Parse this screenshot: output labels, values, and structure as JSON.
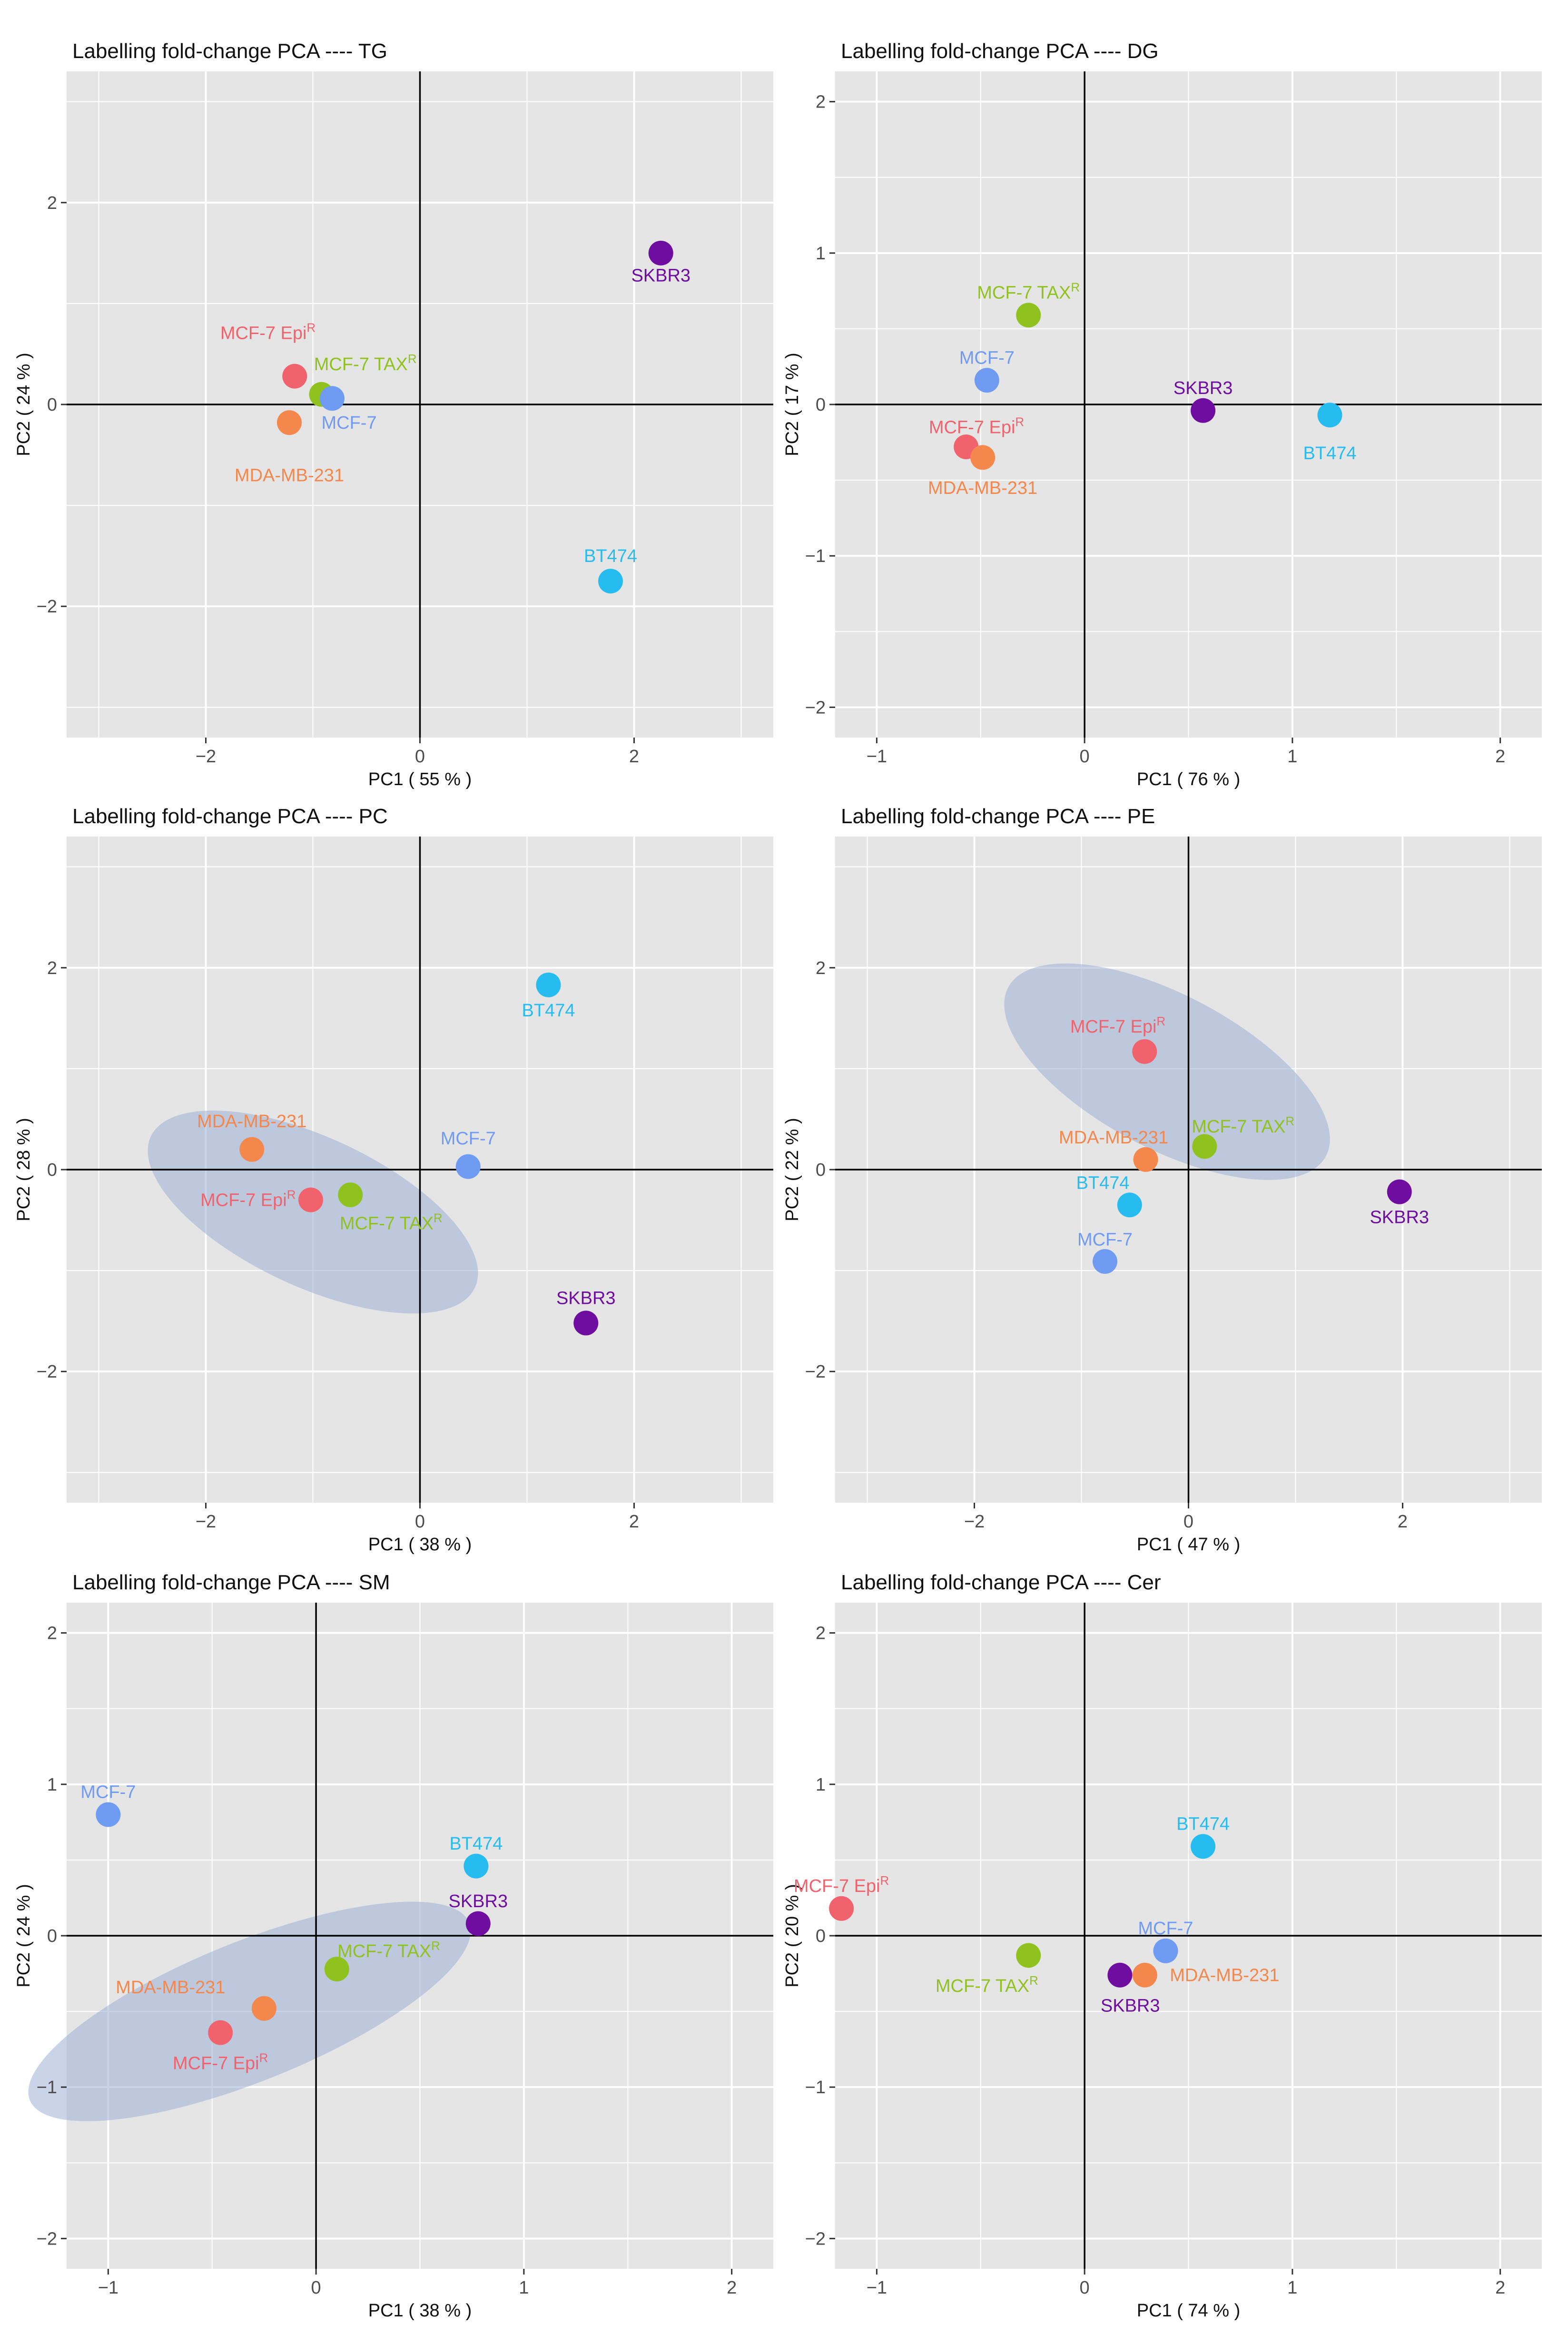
{
  "figure": {
    "colors": {
      "panel_background": "#E5E5E5",
      "gridline": "#FFFFFF",
      "zero_axis": "#000000",
      "ellipse": "#9DB0D6",
      "MCF-7": "#6F9BF2",
      "MCF-7 TAXR": "#90C21F",
      "MCF-7 EpiR": "#F1636C",
      "MDA-MB-231": "#F4874C",
      "BT474": "#27BCEF",
      "SKBR3": "#6E0DA0"
    }
  },
  "chart_data": [
    {
      "type": "scatter",
      "title": "Labelling fold-change PCA ---- TG",
      "xlabel": "PC1 ( 55 % )",
      "ylabel": "PC2 ( 24 % )",
      "xlim": [
        -3.3,
        3.3
      ],
      "ylim": [
        -3.3,
        3.3
      ],
      "xticks": [
        -2,
        0,
        2
      ],
      "xtick_labels": [
        "−2",
        "0",
        "2"
      ],
      "yticks": [
        -2,
        0,
        2
      ],
      "ytick_labels": [
        "−2",
        "0",
        "2"
      ],
      "points": [
        {
          "name": "SKBR3",
          "label": "SKBR3",
          "sup": "",
          "x": 2.25,
          "y": 1.5,
          "color_key": "SKBR3",
          "anchor": "middle",
          "dx": 0,
          "dy": -0.22
        },
        {
          "name": "MCF-7 EpiR",
          "label": "MCF-7 Epi",
          "sup": "R",
          "x": -1.17,
          "y": 0.28,
          "color_key": "MCF-7 EpiR",
          "anchor": "middle",
          "dx": -0.25,
          "dy": 0.43
        },
        {
          "name": "MCF-7 TAXR",
          "label": "MCF-7 TAX",
          "sup": "R",
          "x": -0.92,
          "y": 0.1,
          "color_key": "MCF-7 TAXR",
          "anchor": "start",
          "dx": -0.07,
          "dy": 0.3
        },
        {
          "name": "MCF-7",
          "label": "MCF-7",
          "sup": "",
          "x": -0.82,
          "y": 0.06,
          "color_key": "MCF-7",
          "anchor": "start",
          "dx": -0.1,
          "dy": -0.24
        },
        {
          "name": "MDA-MB-231",
          "label": "MDA-MB-231",
          "sup": "",
          "x": -1.22,
          "y": -0.18,
          "color_key": "MDA-MB-231",
          "anchor": "middle",
          "dx": 0,
          "dy": -0.52
        },
        {
          "name": "BT474",
          "label": "BT474",
          "sup": "",
          "x": 1.78,
          "y": -1.75,
          "color_key": "BT474",
          "anchor": "middle",
          "dx": 0,
          "dy": 0.25
        }
      ]
    },
    {
      "type": "scatter",
      "title": "Labelling fold-change PCA ---- DG",
      "xlabel": "PC1 ( 76 % )",
      "ylabel": "PC2 ( 17 % )",
      "xlim": [
        -1.2,
        2.2
      ],
      "ylim": [
        -2.2,
        2.2
      ],
      "xticks": [
        -1,
        0,
        1,
        2
      ],
      "xtick_labels": [
        "−1",
        "0",
        "1",
        "2"
      ],
      "yticks": [
        -2,
        -1,
        0,
        1,
        2
      ],
      "ytick_labels": [
        "−2",
        "−1",
        "0",
        "1",
        "2"
      ],
      "points": [
        {
          "name": "MCF-7 TAXR",
          "label": "MCF-7 TAX",
          "sup": "R",
          "x": -0.27,
          "y": 0.59,
          "color_key": "MCF-7 TAXR",
          "anchor": "middle",
          "dx": 0,
          "dy": 0.15
        },
        {
          "name": "MCF-7",
          "label": "MCF-7",
          "sup": "",
          "x": -0.47,
          "y": 0.16,
          "color_key": "MCF-7",
          "anchor": "middle",
          "dx": 0,
          "dy": 0.15
        },
        {
          "name": "SKBR3",
          "label": "SKBR3",
          "sup": "",
          "x": 0.57,
          "y": -0.04,
          "color_key": "SKBR3",
          "anchor": "middle",
          "dx": 0,
          "dy": 0.15
        },
        {
          "name": "BT474",
          "label": "BT474",
          "sup": "",
          "x": 1.18,
          "y": -0.07,
          "color_key": "BT474",
          "anchor": "middle",
          "dx": 0,
          "dy": -0.25
        },
        {
          "name": "MCF-7 EpiR",
          "label": "MCF-7 Epi",
          "sup": "R",
          "x": -0.57,
          "y": -0.28,
          "color_key": "MCF-7 EpiR",
          "anchor": "middle",
          "dx": 0.05,
          "dy": 0.13
        },
        {
          "name": "MDA-MB-231",
          "label": "MDA-MB-231",
          "sup": "",
          "x": -0.49,
          "y": -0.35,
          "color_key": "MDA-MB-231",
          "anchor": "middle",
          "dx": 0,
          "dy": -0.2
        }
      ]
    },
    {
      "type": "scatter",
      "title": "Labelling fold-change PCA ---- PC",
      "xlabel": "PC1 ( 38 % )",
      "ylabel": "PC2 ( 28 % )",
      "xlim": [
        -3.3,
        3.3
      ],
      "ylim": [
        -3.3,
        3.3
      ],
      "xticks": [
        -2,
        0,
        2
      ],
      "xtick_labels": [
        "−2",
        "0",
        "2"
      ],
      "yticks": [
        -2,
        0,
        2
      ],
      "ytick_labels": [
        "−2",
        "0",
        "2"
      ],
      "ellipse": {
        "cx": -1.0,
        "cy": -0.42,
        "rx": 1.67,
        "ry": 0.74,
        "rotate": 25
      },
      "points": [
        {
          "name": "BT474",
          "label": "BT474",
          "sup": "",
          "x": 1.2,
          "y": 1.83,
          "color_key": "BT474",
          "anchor": "middle",
          "dx": 0,
          "dy": -0.25
        },
        {
          "name": "MDA-MB-231",
          "label": "MDA-MB-231",
          "sup": "",
          "x": -1.57,
          "y": 0.2,
          "color_key": "MDA-MB-231",
          "anchor": "middle",
          "dx": 0,
          "dy": 0.28
        },
        {
          "name": "MCF-7",
          "label": "MCF-7",
          "sup": "",
          "x": 0.45,
          "y": 0.03,
          "color_key": "MCF-7",
          "anchor": "middle",
          "dx": 0,
          "dy": 0.28
        },
        {
          "name": "MCF-7 EpiR",
          "label": "MCF-7 Epi",
          "sup": "R",
          "x": -1.02,
          "y": -0.3,
          "color_key": "MCF-7 EpiR",
          "anchor": "end",
          "dx": -0.14,
          "dy": 0.0
        },
        {
          "name": "MCF-7 TAXR",
          "label": "MCF-7 TAX",
          "sup": "R",
          "x": -0.65,
          "y": -0.25,
          "color_key": "MCF-7 TAXR",
          "anchor": "middle",
          "dx": 0.38,
          "dy": -0.28
        },
        {
          "name": "SKBR3",
          "label": "SKBR3",
          "sup": "",
          "x": 1.55,
          "y": -1.52,
          "color_key": "SKBR3",
          "anchor": "middle",
          "dx": 0,
          "dy": 0.25
        }
      ]
    },
    {
      "type": "scatter",
      "title": "Labelling fold-change PCA ---- PE",
      "xlabel": "PC1 ( 47 % )",
      "ylabel": "PC2 ( 22 % )",
      "xlim": [
        -3.3,
        3.3
      ],
      "ylim": [
        -3.3,
        3.3
      ],
      "xticks": [
        -2,
        0,
        2
      ],
      "xtick_labels": [
        "−2",
        "0",
        "2"
      ],
      "yticks": [
        -2,
        0,
        2
      ],
      "ytick_labels": [
        "−2",
        "0",
        "2"
      ],
      "ellipse": {
        "cx": -0.2,
        "cy": 0.97,
        "rx": 1.68,
        "ry": 0.76,
        "rotate": 28
      },
      "points": [
        {
          "name": "MCF-7 EpiR",
          "label": "MCF-7 Epi",
          "sup": "R",
          "x": -0.41,
          "y": 1.17,
          "color_key": "MCF-7 EpiR",
          "anchor": "middle",
          "dx": -0.25,
          "dy": 0.25
        },
        {
          "name": "MCF-7 TAXR",
          "label": "MCF-7 TAX",
          "sup": "R",
          "x": 0.15,
          "y": 0.23,
          "color_key": "MCF-7 TAXR",
          "anchor": "start",
          "dx": -0.12,
          "dy": 0.2
        },
        {
          "name": "MDA-MB-231",
          "label": "MDA-MB-231",
          "sup": "",
          "x": -0.4,
          "y": 0.1,
          "color_key": "MDA-MB-231",
          "anchor": "middle",
          "dx": -0.3,
          "dy": 0.22
        },
        {
          "name": "BT474",
          "label": "BT474",
          "sup": "",
          "x": -0.55,
          "y": -0.35,
          "color_key": "BT474",
          "anchor": "middle",
          "dx": -0.25,
          "dy": 0.22
        },
        {
          "name": "SKBR3",
          "label": "SKBR3",
          "sup": "",
          "x": 1.97,
          "y": -0.22,
          "color_key": "SKBR3",
          "anchor": "middle",
          "dx": 0,
          "dy": -0.25
        },
        {
          "name": "MCF-7",
          "label": "MCF-7",
          "sup": "",
          "x": -0.78,
          "y": -0.91,
          "color_key": "MCF-7",
          "anchor": "middle",
          "dx": 0,
          "dy": 0.22
        }
      ]
    },
    {
      "type": "scatter",
      "title": "Labelling fold-change PCA ---- SM",
      "xlabel": "PC1 ( 38 % )",
      "ylabel": "PC2 ( 24 % )",
      "xlim": [
        -1.2,
        2.2
      ],
      "ylim": [
        -2.2,
        2.2
      ],
      "xticks": [
        -1,
        0,
        1,
        2
      ],
      "xtick_labels": [
        "−1",
        "0",
        "1",
        "2"
      ],
      "yticks": [
        -2,
        -1,
        0,
        1,
        2
      ],
      "ytick_labels": [
        "−2",
        "−1",
        "0",
        "1",
        "2"
      ],
      "ellipse": {
        "cx": -0.32,
        "cy": -0.5,
        "rx": 1.14,
        "ry": 0.46,
        "rotate": -22
      },
      "points": [
        {
          "name": "MCF-7",
          "label": "MCF-7",
          "sup": "",
          "x": -1.0,
          "y": 0.8,
          "color_key": "MCF-7",
          "anchor": "middle",
          "dx": 0,
          "dy": 0.15
        },
        {
          "name": "BT474",
          "label": "BT474",
          "sup": "",
          "x": 0.77,
          "y": 0.46,
          "color_key": "BT474",
          "anchor": "middle",
          "dx": 0,
          "dy": 0.15
        },
        {
          "name": "SKBR3",
          "label": "SKBR3",
          "sup": "",
          "x": 0.78,
          "y": 0.08,
          "color_key": "SKBR3",
          "anchor": "middle",
          "dx": 0,
          "dy": 0.15
        },
        {
          "name": "MCF-7 TAXR",
          "label": "MCF-7 TAX",
          "sup": "R",
          "x": 0.1,
          "y": -0.22,
          "color_key": "MCF-7 TAXR",
          "anchor": "middle",
          "dx": 0.25,
          "dy": 0.12
        },
        {
          "name": "MDA-MB-231",
          "label": "MDA-MB-231",
          "sup": "",
          "x": -0.25,
          "y": -0.48,
          "color_key": "MDA-MB-231",
          "anchor": "middle",
          "dx": -0.45,
          "dy": 0.14
        },
        {
          "name": "MCF-7 EpiR",
          "label": "MCF-7 Epi",
          "sup": "R",
          "x": -0.46,
          "y": -0.64,
          "color_key": "MCF-7 EpiR",
          "anchor": "middle",
          "dx": 0,
          "dy": -0.2
        }
      ]
    },
    {
      "type": "scatter",
      "title": "Labelling fold-change PCA ---- Cer",
      "xlabel": "PC1 ( 74 % )",
      "ylabel": "PC2 ( 20 % )",
      "xlim": [
        -1.2,
        2.2
      ],
      "ylim": [
        -2.2,
        2.2
      ],
      "xticks": [
        -1,
        0,
        1,
        2
      ],
      "xtick_labels": [
        "−1",
        "0",
        "1",
        "2"
      ],
      "yticks": [
        -2,
        -1,
        0,
        1,
        2
      ],
      "ytick_labels": [
        "−2",
        "−1",
        "0",
        "1",
        "2"
      ],
      "points": [
        {
          "name": "BT474",
          "label": "BT474",
          "sup": "",
          "x": 0.57,
          "y": 0.59,
          "color_key": "BT474",
          "anchor": "middle",
          "dx": 0,
          "dy": 0.15
        },
        {
          "name": "MCF-7 EpiR",
          "label": "MCF-7 Epi",
          "sup": "R",
          "x": -1.17,
          "y": 0.18,
          "color_key": "MCF-7 EpiR",
          "anchor": "middle",
          "dx": 0,
          "dy": 0.15
        },
        {
          "name": "MCF-7",
          "label": "MCF-7",
          "sup": "",
          "x": 0.39,
          "y": -0.1,
          "color_key": "MCF-7",
          "anchor": "middle",
          "dx": 0,
          "dy": 0.15
        },
        {
          "name": "MCF-7 TAXR",
          "label": "MCF-7 TAX",
          "sup": "R",
          "x": -0.27,
          "y": -0.13,
          "color_key": "MCF-7 TAXR",
          "anchor": "middle",
          "dx": -0.2,
          "dy": -0.2
        },
        {
          "name": "MDA-MB-231",
          "label": "MDA-MB-231",
          "sup": "",
          "x": 0.29,
          "y": -0.26,
          "color_key": "MDA-MB-231",
          "anchor": "start",
          "dx": 0.12,
          "dy": 0
        },
        {
          "name": "SKBR3",
          "label": "SKBR3",
          "sup": "",
          "x": 0.17,
          "y": -0.26,
          "color_key": "SKBR3",
          "anchor": "middle",
          "dx": 0.05,
          "dy": -0.2
        }
      ]
    }
  ]
}
